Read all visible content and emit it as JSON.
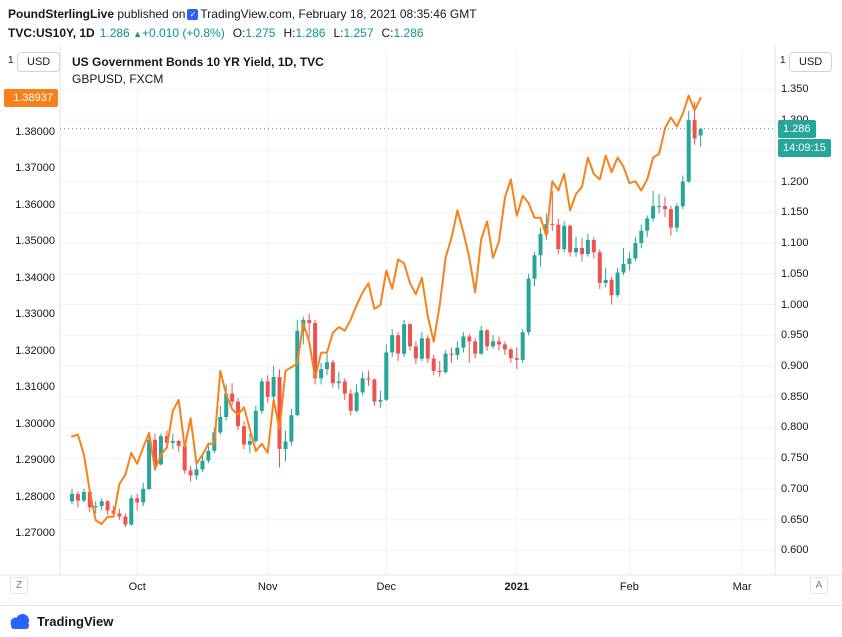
{
  "header": {
    "publisher": "PoundSterlingLive",
    "published_text": "published on",
    "site": "TradingView.com,",
    "datetime": "February 18, 2021 08:35:46 GMT",
    "symbol": "TVC:US10Y, 1D",
    "last": "1.286",
    "change": "+0.010 (+0.8%)",
    "quote": {
      "o_label": "O:",
      "o": "1.275",
      "h_label": "H:",
      "h": "1.286",
      "l_label": "L:",
      "l": "1.257",
      "c_label": "C:",
      "c": "1.286"
    }
  },
  "icons": {
    "up_arrow": "▲",
    "verified_badge": "✓"
  },
  "legend": {
    "title": "US Government Bonds 10 YR Yield, 1D, TVC",
    "overlay": "GBPUSD, FXCM"
  },
  "axes_ui": {
    "left_unit_index": "1",
    "left_unit": "USD",
    "right_unit_index": "1",
    "right_unit": "USD",
    "bottom_left_button": "Z",
    "bottom_right_button": "A"
  },
  "price_labels": {
    "gbpusd_last": "1.38937",
    "us10y_last": "1.286",
    "countdown": "14:09:15"
  },
  "footer": {
    "brand": "TradingView"
  },
  "colors": {
    "up_text": "#089981",
    "candle_up": "#26a69a",
    "candle_down": "#ef5350",
    "line_orange": "#f7821c",
    "label_teal": "#26a69a",
    "text_dark": "#131722",
    "text_gray": "#787b86",
    "grid": "#f0f2f6",
    "brand_blue": "#2962ff"
  },
  "chart_data": {
    "type": "mixed",
    "title": "US Government Bonds 10 YR Yield, 1D, TVC",
    "timeframe": "1D",
    "grid": true,
    "x_labels": [
      {
        "label": "Oct",
        "slot": 11
      },
      {
        "label": "Nov",
        "slot": 33
      },
      {
        "label": "Dec",
        "slot": 53
      },
      {
        "label": "2021",
        "slot": 75,
        "bold": true
      },
      {
        "label": "Feb",
        "slot": 94
      },
      {
        "label": "Mar",
        "slot": 113
      }
    ],
    "left_axis": {
      "unit": "USD",
      "min": 1.2585,
      "max": 1.4025,
      "tick_labels": [
        "1.38000",
        "1.37000",
        "1.36000",
        "1.35000",
        "1.34000",
        "1.33000",
        "1.32000",
        "1.31000",
        "1.30000",
        "1.29000",
        "1.28000",
        "1.27000"
      ],
      "tick_values": [
        1.38,
        1.37,
        1.36,
        1.35,
        1.34,
        1.33,
        1.32,
        1.31,
        1.3,
        1.29,
        1.28,
        1.27
      ]
    },
    "right_axis": {
      "unit": "USD",
      "min": 0.56,
      "max": 1.414,
      "tick_labels": [
        "1.350",
        "1.300",
        "1.250",
        "1.200",
        "1.150",
        "1.100",
        "1.050",
        "1.000",
        "0.950",
        "0.900",
        "0.850",
        "0.800",
        "0.750",
        "0.700",
        "0.650",
        "0.600"
      ],
      "tick_values": [
        1.35,
        1.3,
        1.25,
        1.2,
        1.15,
        1.1,
        1.05,
        1.0,
        0.95,
        0.9,
        0.85,
        0.8,
        0.75,
        0.7,
        0.65,
        0.6
      ]
    },
    "last_price": {
      "value": 1.286,
      "label": "1.286",
      "countdown": "14:09:15",
      "color": "#26a69a"
    },
    "line_last": {
      "value": 1.38937,
      "label": "1.38937",
      "color": "#f7821c"
    },
    "series": [
      {
        "name": "US Government Bonds 10 YR Yield, 1D, TVC",
        "type": "candlestick",
        "axis": "right",
        "up_color": "#26a69a",
        "down_color": "#ef5350",
        "ohlc": [
          [
            0.68,
            0.7,
            0.675,
            0.692
          ],
          [
            0.692,
            0.696,
            0.67,
            0.681
          ],
          [
            0.681,
            0.7,
            0.678,
            0.695
          ],
          [
            0.695,
            0.696,
            0.662,
            0.67
          ],
          [
            0.67,
            0.68,
            0.66,
            0.672
          ],
          [
            0.672,
            0.685,
            0.665,
            0.68
          ],
          [
            0.68,
            0.682,
            0.658,
            0.665
          ],
          [
            0.665,
            0.672,
            0.655,
            0.66
          ],
          [
            0.66,
            0.668,
            0.65,
            0.655
          ],
          [
            0.655,
            0.66,
            0.638,
            0.642
          ],
          [
            0.642,
            0.69,
            0.64,
            0.685
          ],
          [
            0.685,
            0.692,
            0.665,
            0.678
          ],
          [
            0.678,
            0.71,
            0.672,
            0.7
          ],
          [
            0.7,
            0.785,
            0.698,
            0.78
          ],
          [
            0.78,
            0.79,
            0.73,
            0.74
          ],
          [
            0.74,
            0.79,
            0.738,
            0.786
          ],
          [
            0.786,
            0.795,
            0.765,
            0.775
          ],
          [
            0.775,
            0.79,
            0.765,
            0.778
          ],
          [
            0.778,
            0.78,
            0.76,
            0.77
          ],
          [
            0.77,
            0.772,
            0.725,
            0.73
          ],
          [
            0.73,
            0.738,
            0.712,
            0.722
          ],
          [
            0.722,
            0.74,
            0.715,
            0.732
          ],
          [
            0.732,
            0.755,
            0.728,
            0.746
          ],
          [
            0.746,
            0.775,
            0.742,
            0.762
          ],
          [
            0.762,
            0.8,
            0.758,
            0.792
          ],
          [
            0.792,
            0.835,
            0.788,
            0.817
          ],
          [
            0.817,
            0.87,
            0.812,
            0.855
          ],
          [
            0.855,
            0.872,
            0.835,
            0.842
          ],
          [
            0.842,
            0.848,
            0.795,
            0.802
          ],
          [
            0.802,
            0.81,
            0.765,
            0.772
          ],
          [
            0.772,
            0.79,
            0.758,
            0.778
          ],
          [
            0.778,
            0.835,
            0.775,
            0.827
          ],
          [
            0.827,
            0.88,
            0.822,
            0.875
          ],
          [
            0.875,
            0.885,
            0.84,
            0.85
          ],
          [
            0.85,
            0.9,
            0.845,
            0.882
          ],
          [
            0.882,
            0.895,
            0.735,
            0.765
          ],
          [
            0.765,
            0.795,
            0.745,
            0.777
          ],
          [
            0.777,
            0.83,
            0.77,
            0.82
          ],
          [
            0.82,
            0.975,
            0.818,
            0.957
          ],
          [
            0.957,
            0.98,
            0.935,
            0.975
          ],
          [
            0.975,
            0.985,
            0.945,
            0.97
          ],
          [
            0.97,
            0.975,
            0.87,
            0.88
          ],
          [
            0.88,
            0.905,
            0.87,
            0.895
          ],
          [
            0.895,
            0.92,
            0.885,
            0.906
          ],
          [
            0.906,
            0.91,
            0.865,
            0.872
          ],
          [
            0.872,
            0.89,
            0.862,
            0.875
          ],
          [
            0.875,
            0.88,
            0.845,
            0.855
          ],
          [
            0.855,
            0.862,
            0.82,
            0.827
          ],
          [
            0.827,
            0.87,
            0.825,
            0.857
          ],
          [
            0.857,
            0.89,
            0.852,
            0.88
          ],
          [
            0.88,
            0.892,
            0.868,
            0.878
          ],
          [
            0.878,
            0.88,
            0.835,
            0.842
          ],
          [
            0.842,
            0.86,
            0.832,
            0.845
          ],
          [
            0.845,
            0.935,
            0.843,
            0.922
          ],
          [
            0.922,
            0.96,
            0.915,
            0.95
          ],
          [
            0.95,
            0.955,
            0.908,
            0.92
          ],
          [
            0.92,
            0.975,
            0.915,
            0.968
          ],
          [
            0.968,
            0.97,
            0.925,
            0.932
          ],
          [
            0.932,
            0.94,
            0.903,
            0.912
          ],
          [
            0.912,
            0.955,
            0.908,
            0.945
          ],
          [
            0.945,
            0.95,
            0.905,
            0.912
          ],
          [
            0.912,
            0.918,
            0.885,
            0.892
          ],
          [
            0.892,
            0.908,
            0.882,
            0.89
          ],
          [
            0.89,
            0.925,
            0.888,
            0.92
          ],
          [
            0.92,
            0.93,
            0.905,
            0.918
          ],
          [
            0.918,
            0.94,
            0.91,
            0.93
          ],
          [
            0.93,
            0.955,
            0.922,
            0.948
          ],
          [
            0.948,
            0.952,
            0.905,
            0.94
          ],
          [
            0.94,
            0.945,
            0.912,
            0.92
          ],
          [
            0.92,
            0.965,
            0.918,
            0.958
          ],
          [
            0.958,
            0.96,
            0.925,
            0.932
          ],
          [
            0.932,
            0.95,
            0.928,
            0.94
          ],
          [
            0.94,
            0.948,
            0.925,
            0.935
          ],
          [
            0.935,
            0.94,
            0.918,
            0.927
          ],
          [
            0.927,
            0.93,
            0.905,
            0.913
          ],
          [
            0.913,
            0.93,
            0.895,
            0.91
          ],
          [
            0.91,
            0.96,
            0.905,
            0.955
          ],
          [
            0.955,
            1.05,
            0.95,
            1.042
          ],
          [
            1.042,
            1.085,
            1.03,
            1.08
          ],
          [
            1.08,
            1.125,
            1.062,
            1.115
          ],
          [
            1.115,
            1.148,
            1.105,
            1.131
          ],
          [
            1.131,
            1.185,
            1.12,
            1.13
          ],
          [
            1.13,
            1.14,
            1.082,
            1.09
          ],
          [
            1.09,
            1.135,
            1.085,
            1.128
          ],
          [
            1.128,
            1.13,
            1.078,
            1.085
          ],
          [
            1.085,
            1.11,
            1.078,
            1.092
          ],
          [
            1.092,
            1.108,
            1.07,
            1.082
          ],
          [
            1.082,
            1.115,
            1.078,
            1.105
          ],
          [
            1.105,
            1.11,
            1.075,
            1.085
          ],
          [
            1.085,
            1.09,
            1.025,
            1.035
          ],
          [
            1.035,
            1.06,
            1.028,
            1.04
          ],
          [
            1.04,
            1.045,
            1.0,
            1.015
          ],
          [
            1.015,
            1.06,
            1.012,
            1.052
          ],
          [
            1.052,
            1.092,
            1.048,
            1.066
          ],
          [
            1.066,
            1.085,
            1.055,
            1.075
          ],
          [
            1.075,
            1.11,
            1.07,
            1.1
          ],
          [
            1.1,
            1.13,
            1.092,
            1.12
          ],
          [
            1.12,
            1.145,
            1.11,
            1.14
          ],
          [
            1.14,
            1.185,
            1.135,
            1.16
          ],
          [
            1.16,
            1.18,
            1.148,
            1.16
          ],
          [
            1.16,
            1.175,
            1.142,
            1.155
          ],
          [
            1.155,
            1.16,
            1.112,
            1.125
          ],
          [
            1.125,
            1.165,
            1.118,
            1.16
          ],
          [
            1.16,
            1.21,
            1.155,
            1.2
          ],
          [
            1.2,
            1.315,
            1.198,
            1.3
          ],
          [
            1.3,
            1.33,
            1.26,
            1.27
          ],
          [
            1.275,
            1.286,
            1.257,
            1.286
          ]
        ]
      },
      {
        "name": "GBPUSD, FXCM",
        "type": "line",
        "axis": "left",
        "color": "#f7821c",
        "values": [
          1.2965,
          1.297,
          1.2915,
          1.2815,
          1.2735,
          1.2725,
          1.2745,
          1.2745,
          1.2835,
          1.286,
          1.292,
          1.289,
          1.2935,
          1.2975,
          1.2875,
          1.2915,
          1.2935,
          1.3035,
          1.3065,
          1.2935,
          1.3015,
          1.289,
          1.2915,
          1.2945,
          1.2945,
          1.3145,
          1.308,
          1.304,
          1.3025,
          1.3045,
          1.2985,
          1.2925,
          1.2945,
          1.292,
          1.3065,
          1.2985,
          1.3145,
          1.3155,
          1.3165,
          1.3275,
          1.3225,
          1.3125,
          1.3195,
          1.3195,
          1.325,
          1.3265,
          1.3255,
          1.3285,
          1.3325,
          1.336,
          1.3385,
          1.3315,
          1.3325,
          1.342,
          1.337,
          1.345,
          1.344,
          1.3385,
          1.3355,
          1.34,
          1.3295,
          1.3225,
          1.3325,
          1.3455,
          1.351,
          1.3585,
          1.3525,
          1.3455,
          1.336,
          1.3505,
          1.3555,
          1.3455,
          1.35,
          1.362,
          1.367,
          1.357,
          1.3625,
          1.3605,
          1.3565,
          1.3565,
          1.3515,
          1.3665,
          1.364,
          1.3685,
          1.3585,
          1.363,
          1.365,
          1.373,
          1.3685,
          1.367,
          1.3735,
          1.369,
          1.373,
          1.3705,
          1.366,
          1.3665,
          1.364,
          1.367,
          1.373,
          1.374,
          1.381,
          1.384,
          1.3815,
          1.385,
          1.39,
          1.386,
          1.38937
        ]
      }
    ]
  }
}
